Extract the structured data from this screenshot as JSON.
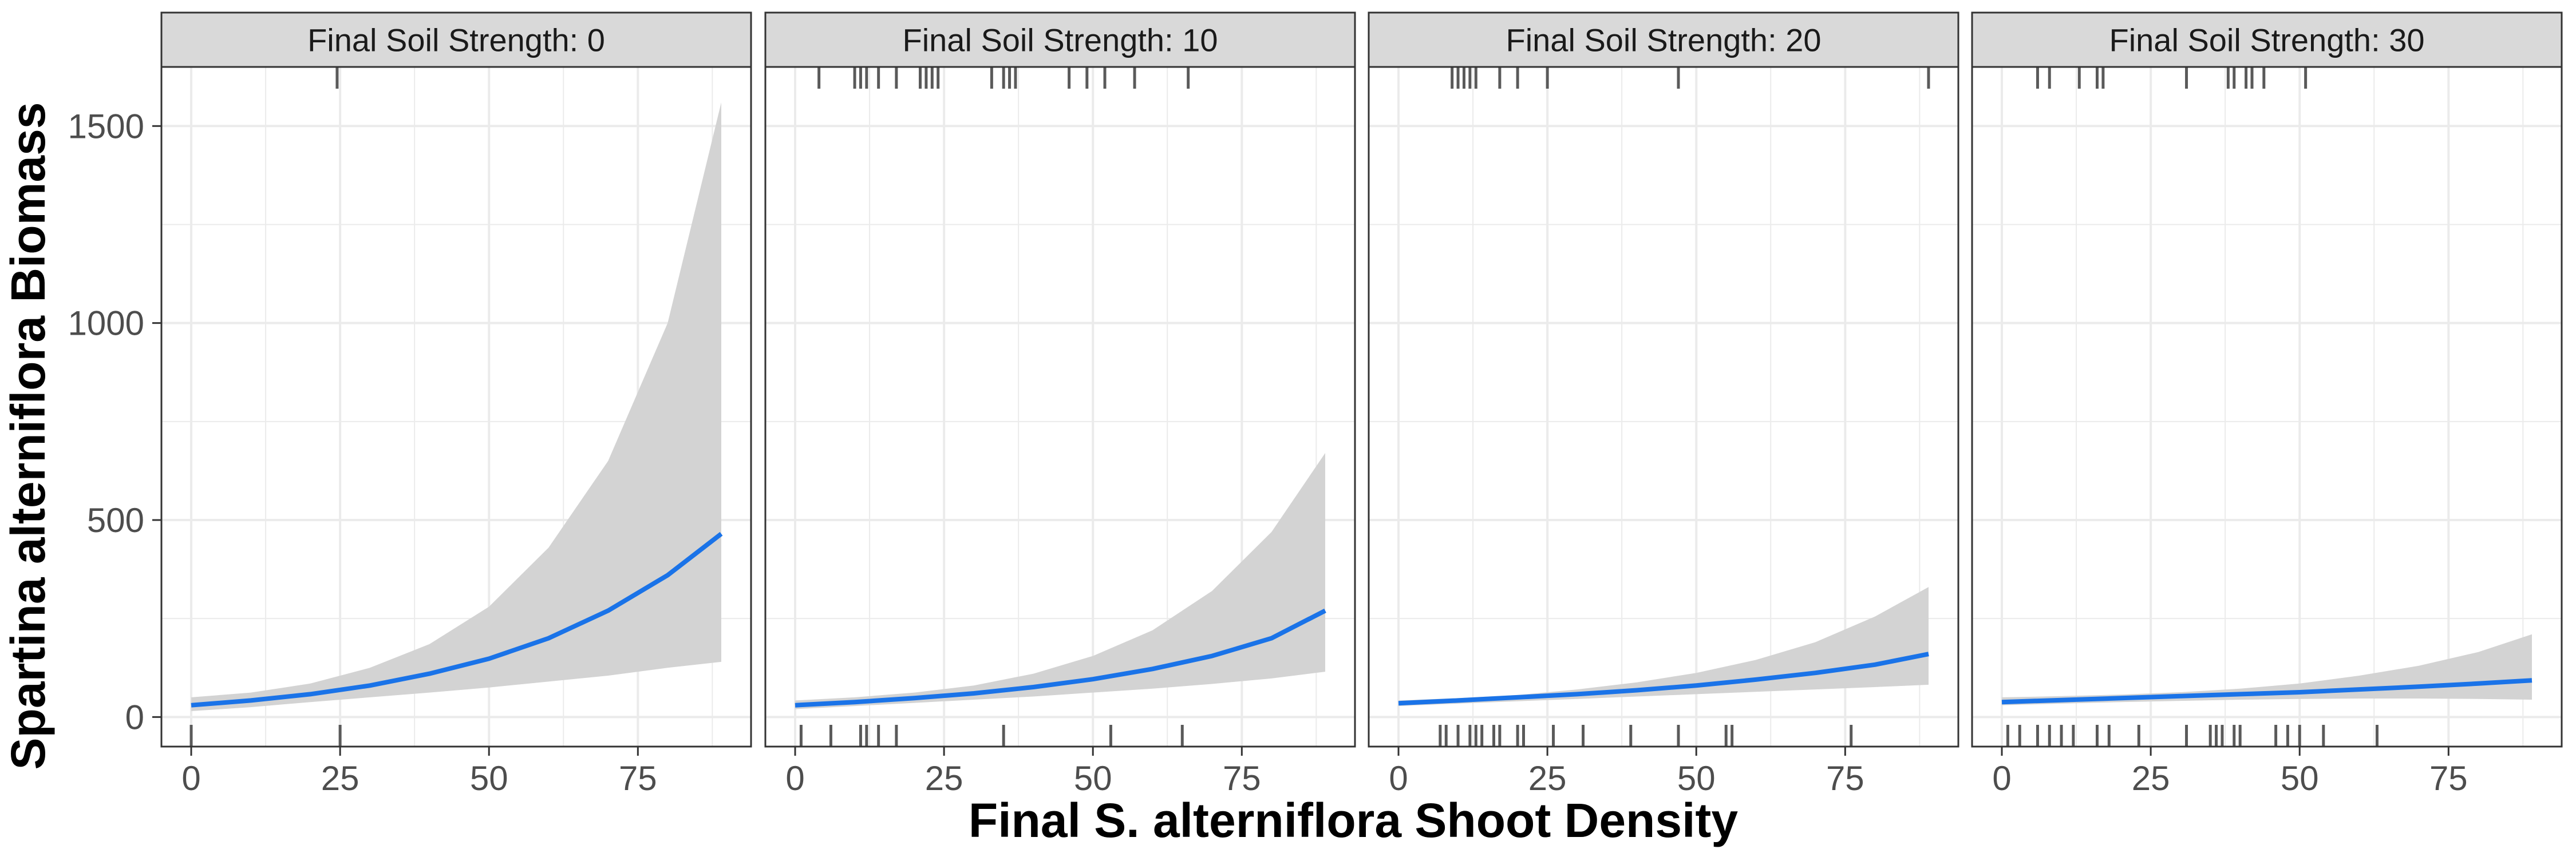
{
  "chart_data": {
    "type": "line",
    "xlabel": "Final S. alterniflora Shoot Density",
    "ylabel": "Spartina alterniflora Biomass",
    "xlim": [
      -5,
      94
    ],
    "ylim": [
      -75,
      1650
    ],
    "x_ticks": [
      0,
      25,
      50,
      75
    ],
    "y_ticks": [
      0,
      500,
      1000,
      1500
    ],
    "grid": true,
    "legend": "none",
    "colors": {
      "line": "#1a73e8",
      "ribbon": "#d3d3d3",
      "rug": "#5a5a5a",
      "strip_fill": "#d9d9d9",
      "grid": "#ebebeb"
    },
    "panels": [
      {
        "label": "Final Soil Strength: 0",
        "x": [
          0,
          10,
          20,
          30,
          40,
          50,
          60,
          70,
          80,
          89
        ],
        "fit": [
          30,
          42,
          58,
          80,
          110,
          148,
          200,
          270,
          360,
          465
        ],
        "lower": [
          15,
          25,
          38,
          50,
          62,
          75,
          90,
          105,
          125,
          140
        ],
        "upper": [
          50,
          62,
          85,
          125,
          185,
          280,
          430,
          650,
          1000,
          1560
        ],
        "rug_bottom": [
          0,
          25
        ],
        "rug_top": [
          24.5
        ]
      },
      {
        "label": "Final Soil Strength: 10",
        "x": [
          0,
          10,
          20,
          30,
          40,
          50,
          60,
          70,
          80,
          89
        ],
        "fit": [
          30,
          38,
          48,
          60,
          76,
          96,
          122,
          155,
          200,
          270
        ],
        "lower": [
          20,
          28,
          36,
          44,
          52,
          62,
          72,
          84,
          98,
          115
        ],
        "upper": [
          42,
          50,
          62,
          80,
          110,
          155,
          220,
          320,
          470,
          670
        ],
        "rug_bottom": [
          1,
          6,
          11,
          12,
          14,
          17,
          35,
          53,
          65
        ],
        "rug_top": [
          4,
          10,
          11,
          12,
          14,
          17,
          21,
          22,
          23,
          24,
          33,
          35,
          36,
          37,
          46,
          49,
          52,
          57,
          66
        ]
      },
      {
        "label": "Final Soil Strength: 20",
        "x": [
          0,
          10,
          20,
          30,
          40,
          50,
          60,
          70,
          80,
          89
        ],
        "fit": [
          35,
          42,
          50,
          58,
          68,
          80,
          95,
          112,
          133,
          160
        ],
        "lower": [
          28,
          34,
          40,
          46,
          52,
          58,
          64,
          70,
          76,
          82
        ],
        "upper": [
          42,
          48,
          56,
          70,
          88,
          112,
          145,
          190,
          255,
          330
        ],
        "rug_bottom": [
          7,
          8,
          10,
          12,
          13,
          14,
          16,
          17,
          20,
          21,
          26,
          31,
          39,
          47,
          55,
          56,
          76
        ],
        "rug_top": [
          9,
          10,
          11,
          12,
          13,
          17,
          20,
          25,
          47,
          89
        ]
      },
      {
        "label": "Final Soil Strength: 30",
        "x": [
          0,
          10,
          20,
          30,
          40,
          50,
          60,
          70,
          80,
          89
        ],
        "fit": [
          38,
          43,
          48,
          53,
          58,
          63,
          70,
          77,
          85,
          93
        ],
        "lower": [
          30,
          34,
          38,
          41,
          44,
          46,
          47,
          47,
          46,
          44
        ],
        "upper": [
          50,
          53,
          57,
          63,
          72,
          85,
          105,
          130,
          165,
          210
        ],
        "rug_bottom": [
          1,
          3,
          6,
          8,
          10,
          12,
          16,
          18,
          23,
          31,
          35,
          36,
          37,
          39,
          40,
          46,
          48,
          50,
          54,
          63
        ],
        "rug_top": [
          6,
          8,
          13,
          16,
          17,
          31,
          38,
          39,
          41,
          42,
          44,
          51
        ]
      }
    ]
  }
}
